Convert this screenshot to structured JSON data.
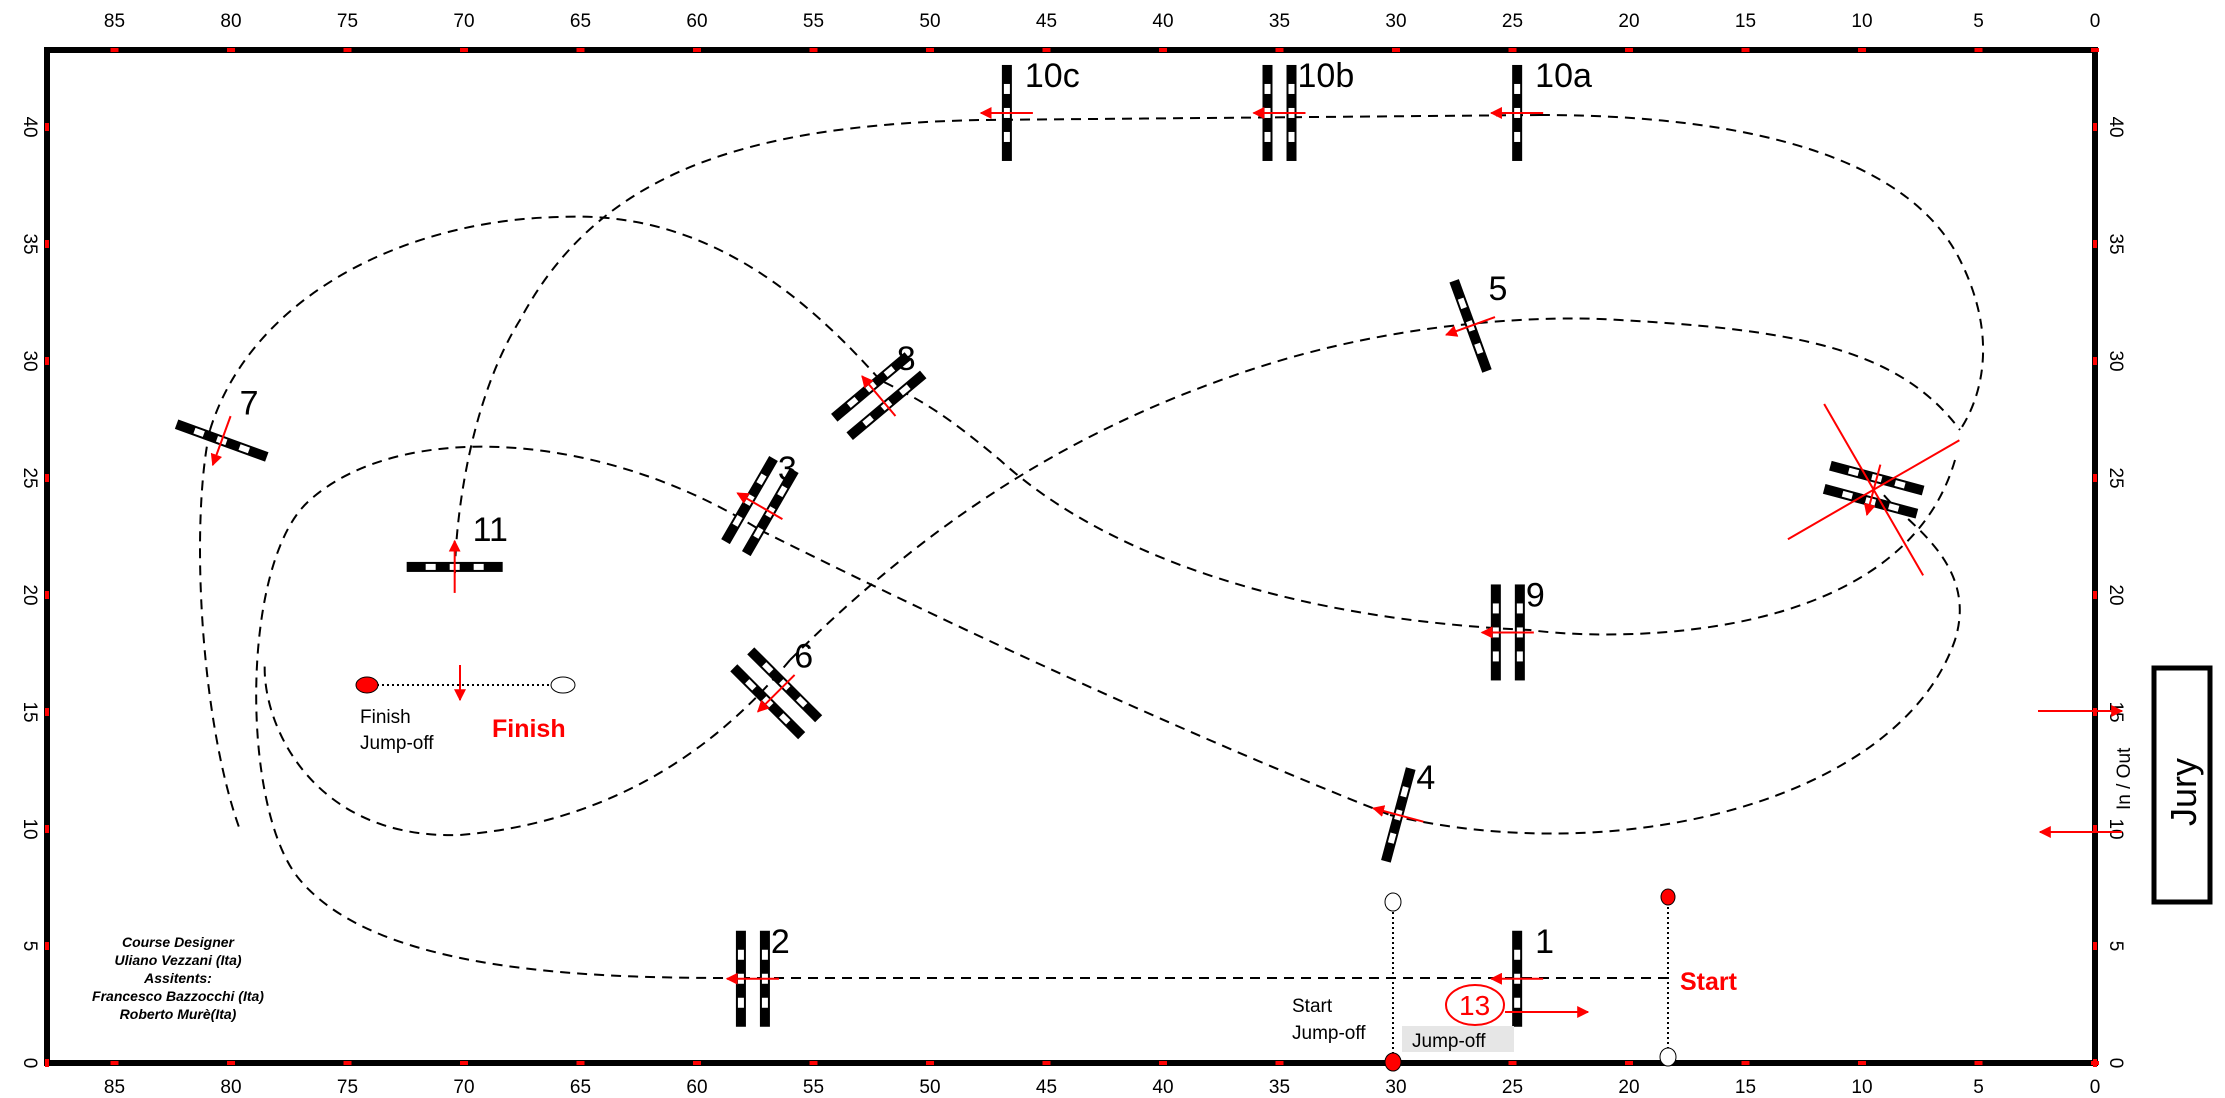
{
  "axis": {
    "x_ticks": [
      85,
      80,
      75,
      70,
      65,
      60,
      55,
      50,
      45,
      40,
      35,
      30,
      25,
      20,
      15,
      10,
      5,
      0
    ],
    "y_ticks": [
      0,
      5,
      10,
      15,
      20,
      25,
      30,
      35,
      40
    ]
  },
  "fences": [
    {
      "label": "1",
      "x": 24.8,
      "y": 3.6,
      "type": "vertical",
      "angle": 0
    },
    {
      "label": "2",
      "x": 57.6,
      "y": 3.6,
      "type": "oxer",
      "angle": 0
    },
    {
      "label": "3",
      "x": 57.3,
      "y": 23.8,
      "type": "oxer",
      "angle": 30
    },
    {
      "label": "4",
      "x": 29.9,
      "y": 10.6,
      "type": "vertical",
      "angle": 15
    },
    {
      "label": "5",
      "x": 26.8,
      "y": 31.5,
      "type": "vertical",
      "angle": -20
    },
    {
      "label": "6",
      "x": 56.6,
      "y": 15.8,
      "type": "oxer",
      "angle": -45
    },
    {
      "label": "7",
      "x": 80.4,
      "y": 26.6,
      "type": "vertical",
      "angle": -70
    },
    {
      "label": "8",
      "x": 52.2,
      "y": 28.5,
      "type": "oxer",
      "angle": 50
    },
    {
      "label": "9",
      "x": 25.2,
      "y": 18.4,
      "type": "oxer",
      "angle": 0
    },
    {
      "label": "10a",
      "x": 24.8,
      "y": 40.6,
      "type": "vertical",
      "angle": 0
    },
    {
      "label": "10b",
      "x": 35.0,
      "y": 40.6,
      "type": "oxer",
      "angle": 0
    },
    {
      "label": "10c",
      "x": 46.7,
      "y": 40.6,
      "type": "vertical",
      "angle": 0
    },
    {
      "label": "11",
      "x": 70.4,
      "y": 21.2,
      "type": "vertical",
      "angle": 90
    },
    {
      "label": "",
      "x": 9.5,
      "y": 24.5,
      "type": "oxer",
      "angle": -75,
      "crossed": true
    }
  ],
  "markers": {
    "start": "Start",
    "finish": "Finish",
    "finish_jumpoff": [
      "Finish",
      "Jump-off"
    ],
    "start_jumpoff": [
      "Start",
      "Jump-off"
    ],
    "jumpoff_box": "Jump-off",
    "circled_number": "13",
    "in_out": "In / Out",
    "jury": "Jury"
  },
  "credits": [
    "Course Designer",
    "Uliano Vezzani (Ita)",
    "Assitents:",
    "Francesco Bazzocchi (Ita)",
    "Roberto Murè(Ita)"
  ],
  "colors": {
    "accent": "#ff0000",
    "line": "#000000",
    "jumpoff_box": "#e6e6e6"
  }
}
